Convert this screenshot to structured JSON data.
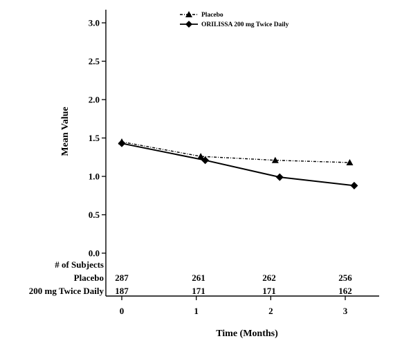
{
  "chart_data": {
    "type": "line",
    "title": "",
    "xlabel": "Time (Months)",
    "ylabel": "Mean Value",
    "xlim": [
      -0.25,
      3.4
    ],
    "ylim": [
      0.0,
      3.0
    ],
    "x_ticks": [
      "0",
      "1",
      "2",
      "3"
    ],
    "y_ticks": [
      "0.0",
      "0.5",
      "1.0",
      "1.5",
      "2.0",
      "2.5",
      "3.0"
    ],
    "grid": false,
    "legend_position": "top-center",
    "series": [
      {
        "name": "Placebo",
        "marker": "triangle",
        "line_style": "dash-dot",
        "color": "#000000",
        "x": [
          0,
          1.06,
          2.06,
          3.06
        ],
        "y": [
          1.45,
          1.26,
          1.21,
          1.18
        ]
      },
      {
        "name": "ORILISSA 200 mg Twice Daily",
        "marker": "diamond",
        "line_style": "solid",
        "color": "#000000",
        "x": [
          0,
          1.12,
          2.12,
          3.12
        ],
        "y": [
          1.43,
          1.21,
          0.99,
          0.88
        ]
      }
    ]
  },
  "subjects_table": {
    "header": "# of Subjects",
    "rows": [
      {
        "label": "Placebo",
        "values": [
          "287",
          "261",
          "262",
          "256"
        ]
      },
      {
        "label": "200 mg Twice Daily",
        "values": [
          "187",
          "171",
          "171",
          "162"
        ]
      }
    ]
  }
}
